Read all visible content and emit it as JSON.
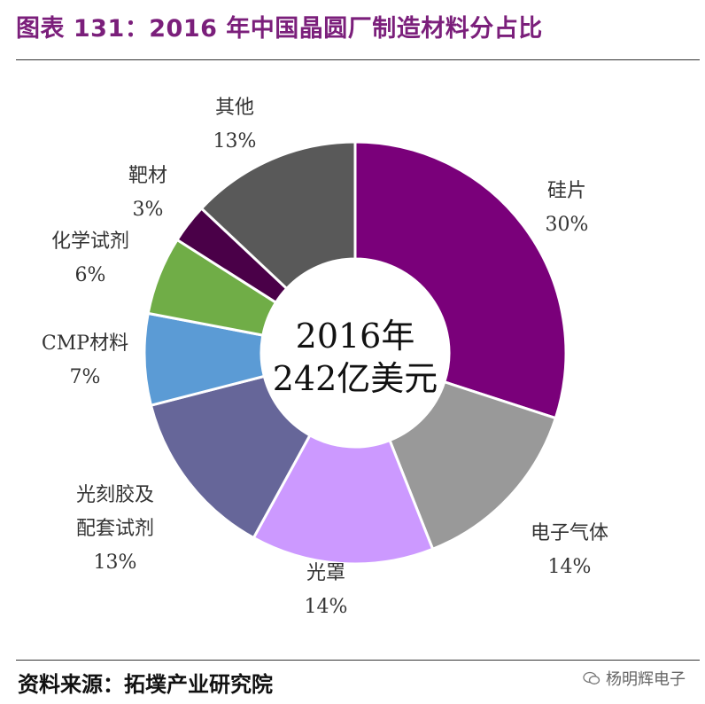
{
  "title": "图表 131：2016 年中国晶圆厂制造材料分占比",
  "source": "资料来源：拓墣产业研究院",
  "watermark": "杨明辉电子",
  "chart_data": {
    "type": "pie",
    "donut": true,
    "title": "图表 131：2016 年中国晶圆厂制造材料分占比",
    "center_text": [
      "2016年",
      "242亿美元"
    ],
    "slices": [
      {
        "label_lines": [
          "硅片"
        ],
        "value": 30,
        "pct_text": "30%",
        "color": "#7a007a"
      },
      {
        "label_lines": [
          "电子气体"
        ],
        "value": 14,
        "pct_text": "14%",
        "color": "#999999"
      },
      {
        "label_lines": [
          "光罩"
        ],
        "value": 14,
        "pct_text": "14%",
        "color": "#cc99ff"
      },
      {
        "label_lines": [
          "光刻胶及",
          "配套试剂"
        ],
        "value": 13,
        "pct_text": "13%",
        "color": "#666699"
      },
      {
        "label_lines": [
          "CMP材料"
        ],
        "value": 7,
        "pct_text": "7%",
        "color": "#5b9bd5"
      },
      {
        "label_lines": [
          "化学试剂"
        ],
        "value": 6,
        "pct_text": "6%",
        "color": "#70ad47"
      },
      {
        "label_lines": [
          "靶材"
        ],
        "value": 3,
        "pct_text": "3%",
        "color": "#4a0048"
      },
      {
        "label_lines": [
          "其他"
        ],
        "value": 13,
        "pct_text": "13%",
        "color": "#595959"
      }
    ]
  }
}
